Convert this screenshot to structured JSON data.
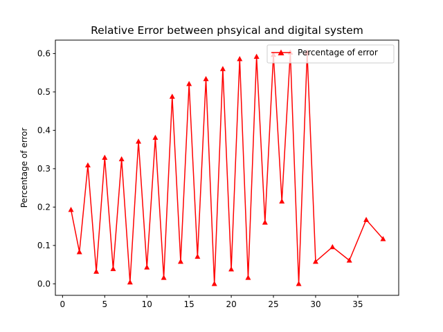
{
  "chart_data": {
    "type": "line",
    "title": "Relative Error between phsyical and digital system",
    "xlabel": "",
    "ylabel": "Percentage of error",
    "xlim": [
      -0.85,
      39.85
    ],
    "ylim": [
      -0.03,
      0.635
    ],
    "xticks": [
      0,
      5,
      10,
      15,
      20,
      25,
      30,
      35
    ],
    "yticks": [
      0.0,
      0.1,
      0.2,
      0.3,
      0.4,
      0.5,
      0.6
    ],
    "ytick_labels": [
      "0.0",
      "0.1",
      "0.2",
      "0.3",
      "0.4",
      "0.5",
      "0.6"
    ],
    "grid": false,
    "legend_position": "upper right",
    "series": [
      {
        "name": "Percentage of error",
        "color": "#ff0000",
        "marker": "triangle-up",
        "x": [
          1,
          2,
          3,
          4,
          5,
          6,
          7,
          8,
          9,
          10,
          11,
          12,
          13,
          14,
          15,
          16,
          17,
          18,
          19,
          20,
          21,
          22,
          23,
          24,
          25,
          26,
          27,
          28,
          29,
          30,
          32,
          34,
          36,
          38
        ],
        "y": [
          0.193,
          0.083,
          0.309,
          0.032,
          0.329,
          0.039,
          0.325,
          0.004,
          0.371,
          0.043,
          0.381,
          0.016,
          0.488,
          0.058,
          0.521,
          0.071,
          0.534,
          0.0,
          0.56,
          0.038,
          0.586,
          0.016,
          0.592,
          0.16,
          0.597,
          0.215,
          0.603,
          0.0,
          0.603,
          0.058,
          0.096,
          0.061,
          0.167,
          0.117
        ]
      }
    ]
  }
}
